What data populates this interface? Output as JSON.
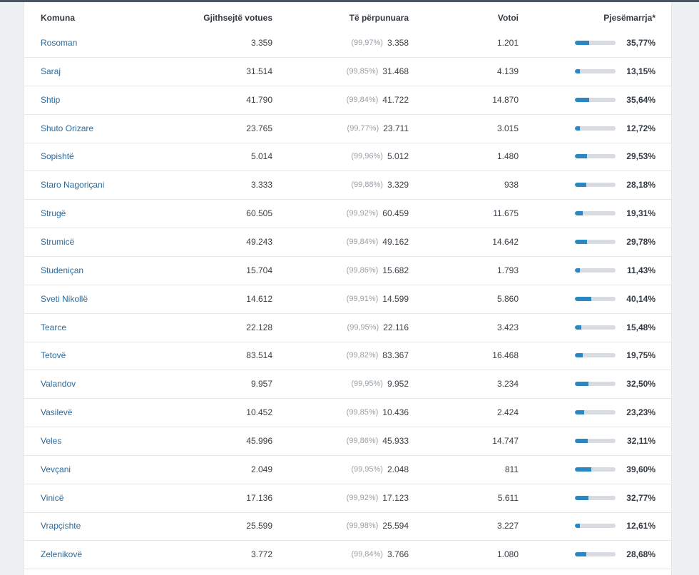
{
  "header": {
    "komuna": "Komuna",
    "total": "Gjithsejtë votues",
    "processed": "Të përpunuara",
    "votes": "Votoi",
    "participation": "Pjesëmarrja*"
  },
  "rows": [
    {
      "name": "Rosoman",
      "total": "3.359",
      "pct": "(99,97%)",
      "processed": "3.358",
      "votes": "1.201",
      "participation": "35,77%",
      "participation_fraction": 0.3577
    },
    {
      "name": "Saraj",
      "total": "31.514",
      "pct": "(99,85%)",
      "processed": "31.468",
      "votes": "4.139",
      "participation": "13,15%",
      "participation_fraction": 0.1315
    },
    {
      "name": "Shtip",
      "total": "41.790",
      "pct": "(99,84%)",
      "processed": "41.722",
      "votes": "14.870",
      "participation": "35,64%",
      "participation_fraction": 0.3564
    },
    {
      "name": "Shuto Orizare",
      "total": "23.765",
      "pct": "(99,77%)",
      "processed": "23.711",
      "votes": "3.015",
      "participation": "12,72%",
      "participation_fraction": 0.1272
    },
    {
      "name": "Sopishtë",
      "total": "5.014",
      "pct": "(99,96%)",
      "processed": "5.012",
      "votes": "1.480",
      "participation": "29,53%",
      "participation_fraction": 0.2953
    },
    {
      "name": "Staro Nagoriçani",
      "total": "3.333",
      "pct": "(99,88%)",
      "processed": "3.329",
      "votes": "938",
      "participation": "28,18%",
      "participation_fraction": 0.2818
    },
    {
      "name": "Strugë",
      "total": "60.505",
      "pct": "(99,92%)",
      "processed": "60.459",
      "votes": "11.675",
      "participation": "19,31%",
      "participation_fraction": 0.1931
    },
    {
      "name": "Strumicë",
      "total": "49.243",
      "pct": "(99,84%)",
      "processed": "49.162",
      "votes": "14.642",
      "participation": "29,78%",
      "participation_fraction": 0.2978
    },
    {
      "name": "Studeniçan",
      "total": "15.704",
      "pct": "(99,86%)",
      "processed": "15.682",
      "votes": "1.793",
      "participation": "11,43%",
      "participation_fraction": 0.1143
    },
    {
      "name": "Sveti Nikollë",
      "total": "14.612",
      "pct": "(99,91%)",
      "processed": "14.599",
      "votes": "5.860",
      "participation": "40,14%",
      "participation_fraction": 0.4014
    },
    {
      "name": "Tearce",
      "total": "22.128",
      "pct": "(99,95%)",
      "processed": "22.116",
      "votes": "3.423",
      "participation": "15,48%",
      "participation_fraction": 0.1548
    },
    {
      "name": "Tetovë",
      "total": "83.514",
      "pct": "(99,82%)",
      "processed": "83.367",
      "votes": "16.468",
      "participation": "19,75%",
      "participation_fraction": 0.1975
    },
    {
      "name": "Valandov",
      "total": "9.957",
      "pct": "(99,95%)",
      "processed": "9.952",
      "votes": "3.234",
      "participation": "32,50%",
      "participation_fraction": 0.325
    },
    {
      "name": "Vasilevë",
      "total": "10.452",
      "pct": "(99,85%)",
      "processed": "10.436",
      "votes": "2.424",
      "participation": "23,23%",
      "participation_fraction": 0.2323
    },
    {
      "name": "Veles",
      "total": "45.996",
      "pct": "(99,86%)",
      "processed": "45.933",
      "votes": "14.747",
      "participation": "32,11%",
      "participation_fraction": 0.3211
    },
    {
      "name": "Vevçani",
      "total": "2.049",
      "pct": "(99,95%)",
      "processed": "2.048",
      "votes": "811",
      "participation": "39,60%",
      "participation_fraction": 0.396
    },
    {
      "name": "Vinicë",
      "total": "17.136",
      "pct": "(99,92%)",
      "processed": "17.123",
      "votes": "5.611",
      "participation": "32,77%",
      "participation_fraction": 0.3277
    },
    {
      "name": "Vrapçishte",
      "total": "25.599",
      "pct": "(99,98%)",
      "processed": "25.594",
      "votes": "3.227",
      "participation": "12,61%",
      "participation_fraction": 0.1261
    },
    {
      "name": "Zelenikovë",
      "total": "3.772",
      "pct": "(99,84%)",
      "processed": "3.766",
      "votes": "1.080",
      "participation": "28,68%",
      "participation_fraction": 0.2868
    }
  ],
  "colors": {
    "accent": "#2a87c4",
    "link": "#2e6a9a",
    "bar_track": "#d8dbdf"
  }
}
